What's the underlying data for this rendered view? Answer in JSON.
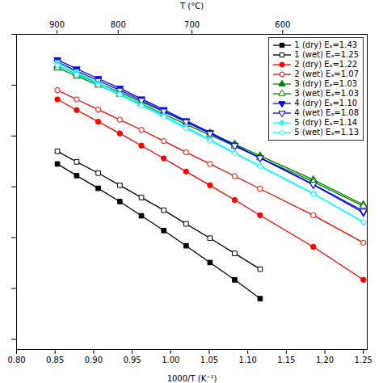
{
  "chart_data": {
    "type": "line",
    "xlabel": "1000/T (K⁻¹)",
    "x2label": "T (°C)",
    "xlim": [
      0.8,
      1.255
    ],
    "xticks": [
      {
        "value": 0.8,
        "label": "0.80"
      },
      0.85,
      {
        "value": 0.9,
        "label": "0.90"
      },
      0.95,
      {
        "value": 1.0,
        "label": "1.00"
      },
      1.05,
      {
        "value": 1.1,
        "label": "1.10"
      },
      1.15,
      {
        "value": 1.2,
        "label": "1.20"
      },
      1.25
    ],
    "x2ticks": [
      {
        "value": 0.852406,
        "label": "900"
      },
      {
        "value": 0.931836,
        "label": "800"
      },
      {
        "value": 1.02759,
        "label": "700"
      },
      {
        "value": 1.145278,
        "label": "600"
      }
    ],
    "ylim": [
      -7.2,
      -1.0
    ],
    "yticks": [
      -7,
      -6,
      -5,
      -4,
      -3,
      -2,
      -1
    ],
    "tick_labels": "x",
    "grid": false,
    "legend": "upper right",
    "series": [
      {
        "name": "1 (dry) Eₐ=1.43",
        "color": "black",
        "marker": "square",
        "x": [
          0.853,
          0.878,
          0.906,
          0.934,
          0.962,
          0.991,
          1.02,
          1.051,
          1.083,
          1.116
        ],
        "values": [
          -3.55,
          -3.78,
          -4.03,
          -4.29,
          -4.57,
          -4.86,
          -5.16,
          -5.49,
          -5.83,
          -6.2
        ]
      },
      {
        "name": "1 (wet) Eₐ=1.25",
        "color": "black",
        "marker": "square-open",
        "x": [
          0.853,
          0.878,
          0.906,
          0.934,
          0.962,
          0.991,
          1.02,
          1.051,
          1.083,
          1.116
        ],
        "values": [
          -3.3,
          -3.51,
          -3.73,
          -3.97,
          -4.21,
          -4.46,
          -4.73,
          -5.01,
          -5.31,
          -5.62
        ]
      },
      {
        "name": "2 (dry) Eₐ=1.22",
        "color": "red",
        "marker": "circle",
        "x": [
          0.853,
          0.878,
          0.906,
          0.934,
          0.962,
          0.991,
          1.02,
          1.051,
          1.083,
          1.116,
          1.185,
          1.25
        ],
        "values": [
          -2.28,
          -2.49,
          -2.72,
          -2.95,
          -3.19,
          -3.44,
          -3.7,
          -3.97,
          -4.26,
          -4.56,
          -5.18,
          -5.83
        ]
      },
      {
        "name": "2 (wet) Eₐ=1.07",
        "color": "red",
        "marker": "circle-open",
        "x": [
          0.853,
          0.878,
          0.906,
          0.934,
          0.962,
          0.991,
          1.02,
          1.051,
          1.083,
          1.116,
          1.185,
          1.25
        ],
        "values": [
          -2.1,
          -2.28,
          -2.48,
          -2.68,
          -2.88,
          -3.1,
          -3.32,
          -3.55,
          -3.79,
          -4.04,
          -4.56,
          -5.1
        ]
      },
      {
        "name": "3 (dry) Eₐ=1.03",
        "color": "green",
        "marker": "triangle",
        "x": [
          0.853,
          0.878,
          0.906,
          0.934,
          0.962,
          0.991,
          1.02,
          1.051,
          1.083,
          1.116,
          1.185,
          1.25
        ],
        "values": [
          -1.62,
          -1.78,
          -1.96,
          -2.14,
          -2.33,
          -2.52,
          -2.73,
          -2.94,
          -3.16,
          -3.39,
          -3.86,
          -4.35
        ]
      },
      {
        "name": "3 (wet) Eₐ=1.03",
        "color": "green",
        "marker": "triangle-open",
        "x": [
          0.853,
          0.878,
          0.906,
          0.934,
          0.962,
          0.991,
          1.02,
          1.051,
          1.083,
          1.116,
          1.185,
          1.25
        ],
        "values": [
          -1.66,
          -1.82,
          -2.0,
          -2.18,
          -2.37,
          -2.57,
          -2.77,
          -2.98,
          -3.2,
          -3.43,
          -3.9,
          -4.38
        ]
      },
      {
        "name": "4 (dry) Eₐ=1.10",
        "color": "blue",
        "marker": "triangle-down",
        "x": [
          0.853,
          0.878,
          0.906,
          0.934,
          0.962,
          0.991,
          1.02,
          1.051,
          1.083,
          1.116,
          1.185,
          1.25
        ],
        "values": [
          -1.5,
          -1.68,
          -1.87,
          -2.06,
          -2.27,
          -2.48,
          -2.7,
          -2.93,
          -3.18,
          -3.43,
          -3.96,
          -4.51
        ]
      },
      {
        "name": "4 (wet) Eₐ=1.08",
        "color": "blue",
        "marker": "triangle-down-open",
        "x": [
          0.853,
          0.878,
          0.906,
          0.934,
          0.962,
          0.991,
          1.02,
          1.051,
          1.083,
          1.116,
          1.185,
          1.25
        ],
        "values": [
          -1.54,
          -1.72,
          -1.91,
          -2.1,
          -2.3,
          -2.51,
          -2.72,
          -2.95,
          -3.19,
          -3.43,
          -3.95,
          -4.48
        ]
      },
      {
        "name": "5 (dry) Eₐ=1.14",
        "color": "cyan",
        "marker": "diamond",
        "x": [
          0.853,
          0.878,
          0.906,
          0.934,
          0.962,
          0.991,
          1.02,
          1.051,
          1.083,
          1.116,
          1.185,
          1.25
        ],
        "values": [
          -1.57,
          -1.75,
          -1.96,
          -2.16,
          -2.38,
          -2.6,
          -2.83,
          -3.07,
          -3.33,
          -3.59,
          -4.13,
          -4.7
        ]
      },
      {
        "name": "5 (wet) Eₐ=1.13",
        "color": "cyan",
        "marker": "diamond-open",
        "x": [
          0.853,
          0.878,
          0.906,
          0.934,
          0.962,
          0.991,
          1.02,
          1.051,
          1.083,
          1.116,
          1.185,
          1.25
        ],
        "values": [
          -1.61,
          -1.79,
          -1.99,
          -2.19,
          -2.4,
          -2.62,
          -2.85,
          -3.09,
          -3.34,
          -3.6,
          -4.14,
          -4.69
        ]
      }
    ]
  }
}
